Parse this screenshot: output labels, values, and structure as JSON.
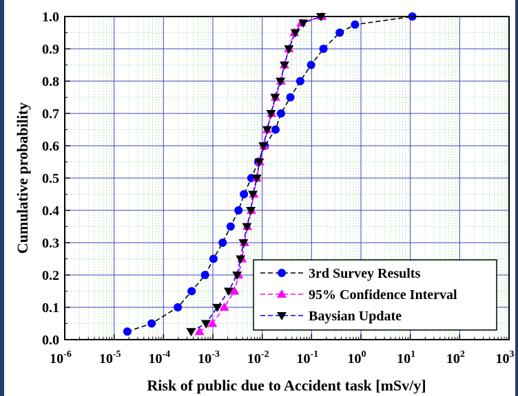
{
  "chart_data": {
    "type": "line",
    "xscale": "log",
    "xlim": [
      1e-06,
      1000
    ],
    "ylim": [
      0.0,
      1.0
    ],
    "xlabel": "Risk of public due to Accident task [mSv/y]",
    "ylabel": "Cumulative probability",
    "x_ticks": [
      {
        "value": 1e-06,
        "base": "10",
        "exp": "-6"
      },
      {
        "value": 1e-05,
        "base": "10",
        "exp": "-5"
      },
      {
        "value": 0.0001,
        "base": "10",
        "exp": "-4"
      },
      {
        "value": 0.001,
        "base": "10",
        "exp": "-3"
      },
      {
        "value": 0.01,
        "base": "10",
        "exp": "-2"
      },
      {
        "value": 0.1,
        "base": "10",
        "exp": "-1"
      },
      {
        "value": 1,
        "base": "10",
        "exp": "0"
      },
      {
        "value": 10,
        "base": "10",
        "exp": "1"
      },
      {
        "value": 100,
        "base": "10",
        "exp": "2"
      },
      {
        "value": 1000,
        "base": "10",
        "exp": "3"
      }
    ],
    "y_ticks": [
      "0.0",
      "0.1",
      "0.2",
      "0.3",
      "0.4",
      "0.5",
      "0.6",
      "0.7",
      "0.8",
      "0.9",
      "1.0"
    ],
    "grid": true,
    "legend_position": "bottom-right",
    "series": [
      {
        "name": "3rd Survey Results",
        "color": "#0000ff",
        "marker": "circle",
        "line_style": "dashed",
        "line_color": "#000000",
        "points": [
          [
            1.85e-05,
            0.025
          ],
          [
            5.75e-05,
            0.05
          ],
          [
            0.000195,
            0.1
          ],
          [
            0.000372,
            0.15
          ],
          [
            0.000695,
            0.2
          ],
          [
            0.00103,
            0.25
          ],
          [
            0.00158,
            0.3
          ],
          [
            0.00229,
            0.35
          ],
          [
            0.00331,
            0.4
          ],
          [
            0.00427,
            0.45
          ],
          [
            0.00603,
            0.5
          ],
          [
            0.00832,
            0.55
          ],
          [
            0.0112,
            0.6
          ],
          [
            0.0186,
            0.65
          ],
          [
            0.024,
            0.7
          ],
          [
            0.0372,
            0.75
          ],
          [
            0.0589,
            0.8
          ],
          [
            0.0977,
            0.85
          ],
          [
            0.174,
            0.9
          ],
          [
            0.372,
            0.95
          ],
          [
            0.759,
            0.975
          ],
          [
            11.0,
            1.0
          ]
        ]
      },
      {
        "name": "95% Confidence Interval",
        "color": "#ff00ff",
        "marker": "triangle-up",
        "line_style": "dashed",
        "line_color": "#ff00ff",
        "points": [
          [
            0.000537,
            0.025
          ],
          [
            0.000977,
            0.05
          ],
          [
            0.0017,
            0.1
          ],
          [
            0.00275,
            0.15
          ],
          [
            0.00331,
            0.2
          ],
          [
            0.00389,
            0.25
          ],
          [
            0.00437,
            0.3
          ],
          [
            0.00501,
            0.35
          ],
          [
            0.00603,
            0.4
          ],
          [
            0.00676,
            0.45
          ],
          [
            0.00776,
            0.5
          ],
          [
            0.00891,
            0.55
          ],
          [
            0.011,
            0.6
          ],
          [
            0.0126,
            0.65
          ],
          [
            0.0155,
            0.7
          ],
          [
            0.0186,
            0.75
          ],
          [
            0.024,
            0.8
          ],
          [
            0.0282,
            0.85
          ],
          [
            0.0347,
            0.9
          ],
          [
            0.0447,
            0.95
          ],
          [
            0.0617,
            0.98
          ],
          [
            0.162,
            1.0
          ]
        ]
      },
      {
        "name": "Baysian Update",
        "color": "#000000",
        "marker": "triangle-down",
        "line_style": "dashed",
        "line_color": "#0000ff",
        "points": [
          [
            0.000363,
            0.025
          ],
          [
            0.000724,
            0.05
          ],
          [
            0.00123,
            0.1
          ],
          [
            0.00209,
            0.15
          ],
          [
            0.00309,
            0.2
          ],
          [
            0.00363,
            0.25
          ],
          [
            0.00417,
            0.3
          ],
          [
            0.0049,
            0.35
          ],
          [
            0.00589,
            0.4
          ],
          [
            0.00646,
            0.45
          ],
          [
            0.00776,
            0.5
          ],
          [
            0.00871,
            0.55
          ],
          [
            0.0105,
            0.6
          ],
          [
            0.0126,
            0.65
          ],
          [
            0.0151,
            0.7
          ],
          [
            0.0182,
            0.75
          ],
          [
            0.0234,
            0.8
          ],
          [
            0.0282,
            0.85
          ],
          [
            0.0347,
            0.9
          ],
          [
            0.0468,
            0.95
          ],
          [
            0.0676,
            0.98
          ],
          [
            0.155,
            1.0
          ]
        ]
      }
    ]
  }
}
